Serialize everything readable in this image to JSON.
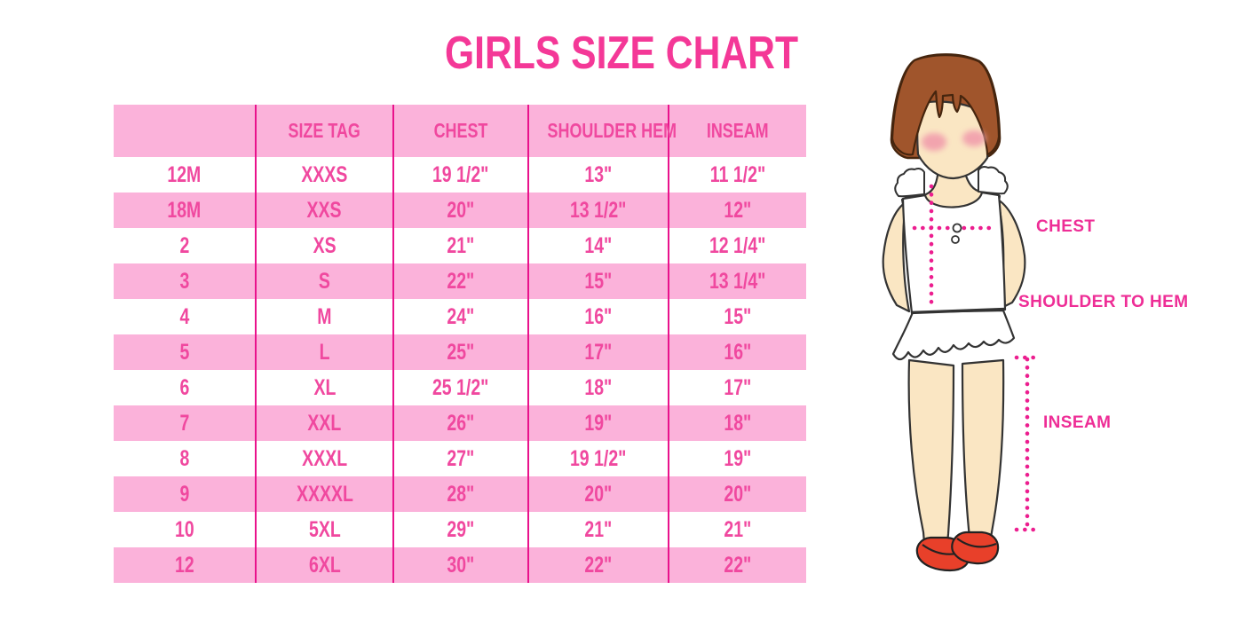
{
  "title": "GIRLS SIZE CHART",
  "chart_data": {
    "type": "table",
    "title": "GIRLS SIZE CHART",
    "columns": [
      "",
      "SIZE TAG",
      "CHEST",
      "SHOULDER HEM",
      "INSEAM"
    ],
    "rows": [
      [
        "12M",
        "XXXS",
        "19 1/2\"",
        "13\"",
        "11 1/2\""
      ],
      [
        "18M",
        "XXS",
        "20\"",
        "13 1/2\"",
        "12\""
      ],
      [
        "2",
        "XS",
        "21\"",
        "14\"",
        "12 1/4\""
      ],
      [
        "3",
        "S",
        "22\"",
        "15\"",
        "13 1/4\""
      ],
      [
        "4",
        "M",
        "24\"",
        "16\"",
        "15\""
      ],
      [
        "5",
        "L",
        "25\"",
        "17\"",
        "16\""
      ],
      [
        "6",
        "XL",
        "25 1/2\"",
        "18\"",
        "17\""
      ],
      [
        "7",
        "XXL",
        "26\"",
        "19\"",
        "18\""
      ],
      [
        "8",
        "XXXL",
        "27\"",
        "19 1/2\"",
        "19\""
      ],
      [
        "9",
        "XXXXL",
        "28\"",
        "20\"",
        "20\""
      ],
      [
        "10",
        "5XL",
        "29\"",
        "21\"",
        "21\""
      ],
      [
        "12",
        "6XL",
        "30\"",
        "22\"",
        "22\""
      ]
    ],
    "layout_hints": {
      "row_striping": "header pink, data rows alternate white/pink starting white",
      "grid": "vertical magenta separators only, no outer border",
      "legend_position": "none"
    }
  },
  "figure": {
    "description": "illustration of girl with bob haircut, white ruffled top and skirt, red shoes, with dotted measurement guides",
    "labels": {
      "chest": "CHEST",
      "shoulder_to_hem": "SHOULDER TO HEM",
      "inseam": "INSEAM"
    }
  },
  "colors": {
    "title_pink": "#F43897",
    "row_pink": "#FBB2DA",
    "grid_magenta": "#E9128C",
    "table_text_pink": "#F0489F",
    "label_magenta": "#EE2D96",
    "dotted_magenta": "#EC1E8F",
    "hair_brown": "#A0552C",
    "hair_outline": "#45250E",
    "skin": "#FAE6C3",
    "outline_dark": "#333333",
    "blush_pink": "#F2A4AE",
    "shoe_red": "#E8402A"
  }
}
